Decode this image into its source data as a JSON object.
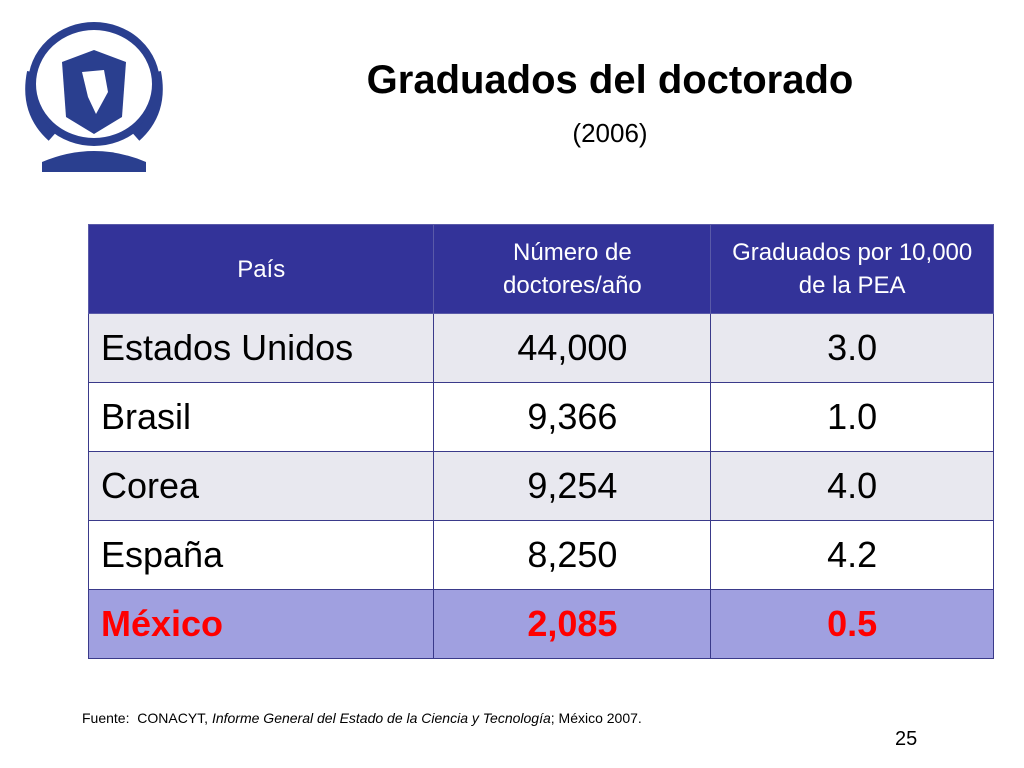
{
  "header": {
    "title": "Graduados del doctorado",
    "subtitle": "(2006)"
  },
  "table": {
    "columns": [
      "País",
      "Número de doctores/año",
      "Graduados por 10,000 de la PEA"
    ],
    "rows": [
      [
        "Estados Unidos",
        "44,000",
        "3.0"
      ],
      [
        "Brasil",
        "9,366",
        "1.0"
      ],
      [
        "Corea",
        "9,254",
        "4.0"
      ],
      [
        "España",
        "8,250",
        "4.2"
      ],
      [
        "México",
        "2,085",
        "0.5"
      ]
    ]
  },
  "footnote": {
    "label": "Fuente:",
    "source": "CONACYT,",
    "publication": "Informe General del Estado de la Ciencia y Tecnología",
    "rest": "; México 2007."
  },
  "page_number": "25"
}
